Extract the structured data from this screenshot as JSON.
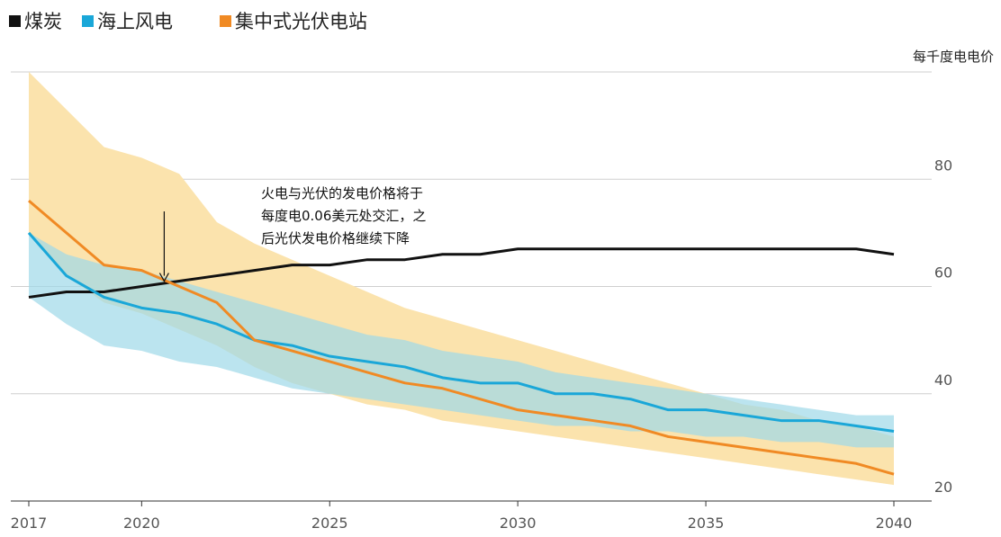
{
  "legend": [
    {
      "label": "煤炭",
      "color": "#111111"
    },
    {
      "label": "海上风电",
      "color": "#1aa7d8"
    },
    {
      "label": "集中式光伏电站",
      "color": "#f08a24"
    }
  ],
  "chart_data": {
    "type": "line",
    "ylabel": "每千度电电价",
    "xlim": [
      2017,
      2040
    ],
    "ylim": [
      20,
      100
    ],
    "x_ticks": [
      "2017",
      "2020",
      "2025",
      "2030",
      "2035",
      "2040"
    ],
    "x_tick_values": [
      2017,
      2020,
      2025,
      2030,
      2035,
      2040
    ],
    "y_ticks": [
      "80",
      "60",
      "40",
      "20"
    ],
    "y_tick_values": [
      80,
      60,
      40,
      20
    ],
    "y_grid_values": [
      20,
      40,
      60,
      80,
      100
    ],
    "grid": true,
    "legend_position": "top-left",
    "series": [
      {
        "name": "煤炭",
        "color": "#111111",
        "x": [
          2017,
          2018,
          2019,
          2020,
          2021,
          2022,
          2023,
          2024,
          2025,
          2026,
          2027,
          2028,
          2029,
          2030,
          2031,
          2032,
          2033,
          2034,
          2035,
          2036,
          2037,
          2038,
          2039,
          2040
        ],
        "y": [
          58,
          59,
          59,
          60,
          61,
          62,
          63,
          64,
          64,
          65,
          65,
          66,
          66,
          67,
          67,
          67,
          67,
          67,
          67,
          67,
          67,
          67,
          67,
          66
        ]
      },
      {
        "name": "海上风电",
        "color": "#1aa7d8",
        "x": [
          2017,
          2018,
          2019,
          2020,
          2021,
          2022,
          2023,
          2024,
          2025,
          2026,
          2027,
          2028,
          2029,
          2030,
          2031,
          2032,
          2033,
          2034,
          2035,
          2036,
          2037,
          2038,
          2039,
          2040
        ],
        "y": [
          70,
          62,
          58,
          56,
          55,
          53,
          50,
          49,
          47,
          46,
          45,
          43,
          42,
          42,
          40,
          40,
          39,
          37,
          37,
          36,
          35,
          35,
          34,
          33
        ]
      },
      {
        "name": "集中式光伏电站",
        "color": "#f08a24",
        "x": [
          2017,
          2018,
          2019,
          2020,
          2021,
          2022,
          2023,
          2024,
          2025,
          2026,
          2027,
          2028,
          2029,
          2030,
          2031,
          2032,
          2033,
          2034,
          2035,
          2036,
          2037,
          2038,
          2039,
          2040
        ],
        "y": [
          76,
          70,
          64,
          63,
          60,
          57,
          50,
          48,
          46,
          44,
          42,
          41,
          39,
          37,
          36,
          35,
          34,
          32,
          31,
          30,
          29,
          28,
          27,
          25
        ]
      }
    ],
    "bands": [
      {
        "for": "集中式光伏电站",
        "color": "#fbe3ad",
        "x": [
          2017,
          2018,
          2019,
          2020,
          2021,
          2022,
          2023,
          2024,
          2025,
          2026,
          2027,
          2028,
          2029,
          2030,
          2031,
          2032,
          2033,
          2034,
          2035,
          2036,
          2037,
          2038,
          2039,
          2040
        ],
        "low": [
          70,
          62,
          57,
          55,
          52,
          49,
          45,
          42,
          40,
          38,
          37,
          35,
          34,
          33,
          32,
          31,
          30,
          29,
          28,
          27,
          26,
          25,
          24,
          23
        ],
        "high": [
          100,
          93,
          86,
          84,
          81,
          72,
          68,
          65,
          62,
          59,
          56,
          54,
          52,
          50,
          48,
          46,
          44,
          42,
          40,
          38,
          37,
          35,
          34,
          32
        ]
      },
      {
        "for": "海上风电",
        "color": "#9ed8e8",
        "x": [
          2017,
          2018,
          2019,
          2020,
          2021,
          2022,
          2023,
          2024,
          2025,
          2026,
          2027,
          2028,
          2029,
          2030,
          2031,
          2032,
          2033,
          2034,
          2035,
          2036,
          2037,
          2038,
          2039,
          2040
        ],
        "low": [
          58,
          53,
          49,
          48,
          46,
          45,
          43,
          41,
          40,
          39,
          38,
          37,
          36,
          35,
          34,
          34,
          33,
          33,
          32,
          32,
          31,
          31,
          30,
          30
        ],
        "high": [
          70,
          66,
          64,
          63,
          61,
          59,
          57,
          55,
          53,
          51,
          50,
          48,
          47,
          46,
          44,
          43,
          42,
          41,
          40,
          39,
          38,
          37,
          36,
          36
        ]
      }
    ],
    "annotation": {
      "lines": [
        "火电与光伏的发电价格将于",
        "每度电0.06美元处交汇，之",
        "后光伏发电价格继续下降"
      ],
      "arrow_x": 2020.6,
      "arrow_from_y": 74,
      "arrow_to_y": 61
    }
  }
}
